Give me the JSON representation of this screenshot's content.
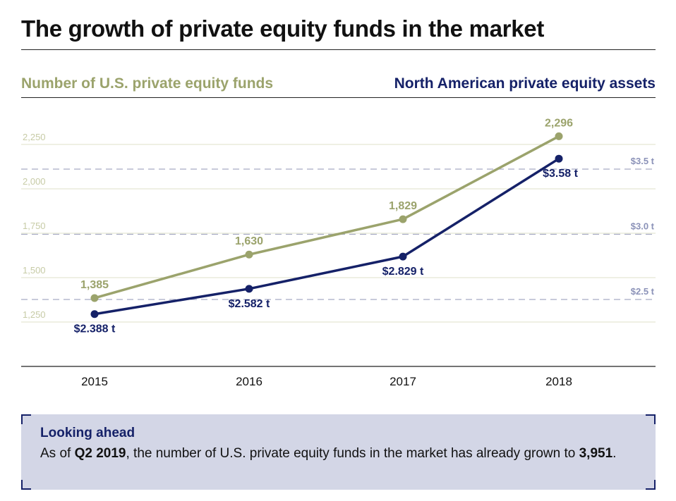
{
  "title": "The growth of private equity funds in the market",
  "legend": {
    "left": "Number of U.S. private equity funds",
    "right": "North American private equity assets"
  },
  "colors": {
    "funds": "#9ba36c",
    "assets": "#152168",
    "funds_grid": "#dfe1c8",
    "assets_grid": "#a7abc4",
    "funds_tick": "#c7cba6",
    "assets_tick": "#8b92b8"
  },
  "chart_data": {
    "type": "line",
    "x": [
      "2015",
      "2016",
      "2017",
      "2018"
    ],
    "series": [
      {
        "name": "Number of U.S. private equity funds",
        "axis": "left",
        "values": [
          1385,
          1630,
          1829,
          2296
        ],
        "labels": [
          "1,385",
          "1,630",
          "1,829",
          "2,296"
        ]
      },
      {
        "name": "North American private equity assets",
        "axis": "right",
        "values": [
          2.388,
          2.582,
          2.829,
          3.58
        ],
        "labels": [
          "$2.388 t",
          "$2.582 t",
          "$2.829 t",
          "$3.58 t"
        ]
      }
    ],
    "left_axis": {
      "range": [
        1250,
        2250
      ],
      "ticks": [
        1250,
        1500,
        1750,
        2000,
        2250
      ],
      "tick_labels": [
        "1,250",
        "1,500",
        "1,750",
        "2,000",
        "2,250"
      ]
    },
    "right_axis": {
      "range": [
        2.3,
        3.6
      ],
      "ticks": [
        2.5,
        3.0,
        3.5
      ],
      "tick_labels": [
        "$2.5 t",
        "$3.0 t",
        "$3.5 t"
      ]
    }
  },
  "callout": {
    "heading": "Looking ahead",
    "text_prefix": "As of ",
    "text_bold_1": "Q2 2019",
    "text_middle": ", the number of U.S. private equity funds in the market has already grown to ",
    "text_bold_2": "3,951",
    "text_suffix": "."
  }
}
